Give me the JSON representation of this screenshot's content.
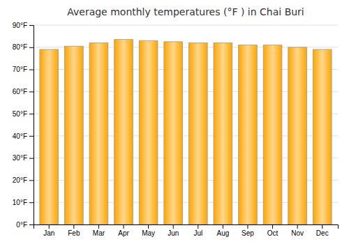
{
  "chart_data": {
    "type": "bar",
    "title": "Average monthly temperatures (°F ) in Chai Buri",
    "categories": [
      "Jan",
      "Feb",
      "Mar",
      "Apr",
      "May",
      "Jun",
      "Jul",
      "Aug",
      "Sep",
      "Oct",
      "Nov",
      "Dec"
    ],
    "values": [
      79.0,
      80.5,
      82.0,
      83.5,
      83.0,
      82.5,
      82.0,
      82.0,
      81.0,
      81.0,
      80.0,
      79.0
    ],
    "color": "#FFA500",
    "ylim": [
      0,
      90
    ],
    "yticks": [
      {
        "value": 0,
        "label": "0°F"
      },
      {
        "value": 10,
        "label": "10°F"
      },
      {
        "value": 20,
        "label": "20°F"
      },
      {
        "value": 30,
        "label": "30°F"
      },
      {
        "value": 40,
        "label": "40°F"
      },
      {
        "value": 50,
        "label": "50°F"
      },
      {
        "value": 60,
        "label": "60°F"
      },
      {
        "value": 70,
        "label": "70°F"
      },
      {
        "value": 80,
        "label": "80°F"
      },
      {
        "value": 90,
        "label": "90°F"
      }
    ],
    "grid": true
  }
}
